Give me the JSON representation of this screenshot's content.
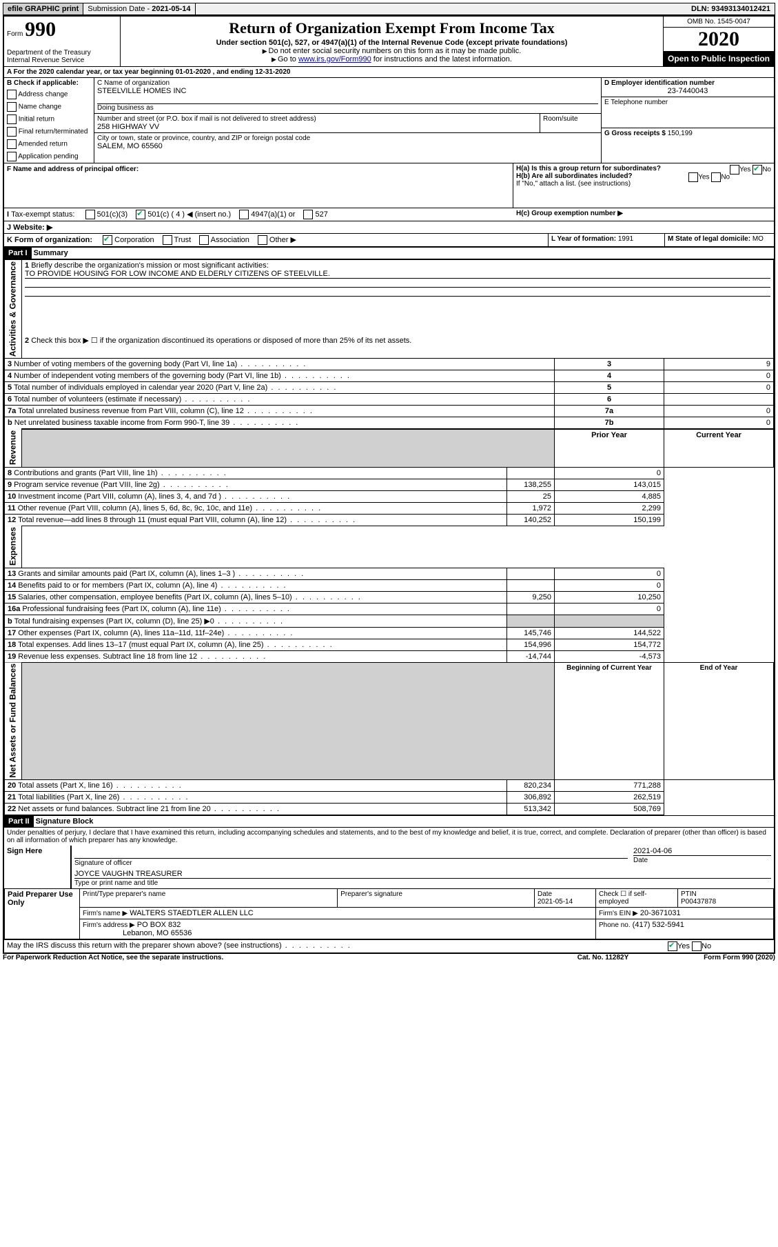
{
  "topbar": {
    "efile": "efile GRAPHIC print",
    "submission_label": "Submission Date - ",
    "submission_date": "2021-05-14",
    "dln_label": "DLN: ",
    "dln": "93493134012421"
  },
  "header": {
    "form_label": "Form",
    "form_num": "990",
    "dept": "Department of the Treasury\nInternal Revenue Service",
    "title": "Return of Organization Exempt From Income Tax",
    "subtitle": "Under section 501(c), 527, or 4947(a)(1) of the Internal Revenue Code (except private foundations)",
    "note1": "Do not enter social security numbers on this form as it may be made public.",
    "note2_pre": "Go to ",
    "note2_link": "www.irs.gov/Form990",
    "note2_post": " for instructions and the latest information.",
    "omb": "OMB No. 1545-0047",
    "year": "2020",
    "otp": "Open to Public Inspection"
  },
  "a_line": "For the 2020 calendar year, or tax year beginning 01-01-2020   , and ending 12-31-2020",
  "b": {
    "label": "B Check if applicable:",
    "items": [
      "Address change",
      "Name change",
      "Initial return",
      "Final return/terminated",
      "Amended return",
      "Application pending"
    ]
  },
  "c": {
    "name_label": "C Name of organization",
    "name": "STEELVILLE HOMES INC",
    "dba_label": "Doing business as",
    "street_label": "Number and street (or P.O. box if mail is not delivered to street address)",
    "room_label": "Room/suite",
    "street": "258 HIGHWAY VV",
    "city_label": "City or town, state or province, country, and ZIP or foreign postal code",
    "city": "SALEM, MO  65560"
  },
  "d": {
    "label": "D Employer identification number",
    "value": "23-7440043"
  },
  "e": {
    "label": "E Telephone number",
    "value": ""
  },
  "g": {
    "label": "G Gross receipts $",
    "value": "150,199"
  },
  "f": {
    "label": "F  Name and address of principal officer:",
    "value": ""
  },
  "h": {
    "a_label": "H(a)  Is this a group return for subordinates?",
    "a_no": true,
    "b_label": "H(b)  Are all subordinates included?",
    "b_note": "If \"No,\" attach a list. (see instructions)",
    "c_label": "H(c)  Group exemption number ▶"
  },
  "i": {
    "label": "Tax-exempt status:",
    "opts": [
      "501(c)(3)",
      "501(c) ( 4 ) ◀ (insert no.)",
      "4947(a)(1) or",
      "527"
    ],
    "checked_idx": 1
  },
  "j": {
    "label": "J   Website: ▶"
  },
  "k": {
    "label": "K Form of organization:",
    "opts": [
      "Corporation",
      "Trust",
      "Association",
      "Other ▶"
    ],
    "checked_idx": 0
  },
  "l": {
    "label": "L Year of formation:",
    "value": "1991"
  },
  "m": {
    "label": "M State of legal domicile:",
    "value": "MO"
  },
  "part1": {
    "hdr_label": "Part I",
    "hdr_title": "Summary",
    "sections": [
      "Activities & Governance",
      "Revenue",
      "Expenses",
      "Net Assets or Fund Balances"
    ],
    "q1_label": "Briefly describe the organization's mission or most significant activities:",
    "q1_value": "TO PROVIDE HOUSING FOR LOW INCOME AND ELDERLY CITIZENS OF STEELVILLE.",
    "q2_label": "Check this box ▶ ☐  if the organization discontinued its operations or disposed of more than 25% of its net assets.",
    "gov_rows": [
      {
        "n": "3",
        "t": "Number of voting members of the governing body (Part VI, line 1a)",
        "box": "3",
        "v": "9"
      },
      {
        "n": "4",
        "t": "Number of independent voting members of the governing body (Part VI, line 1b)",
        "box": "4",
        "v": "0"
      },
      {
        "n": "5",
        "t": "Total number of individuals employed in calendar year 2020 (Part V, line 2a)",
        "box": "5",
        "v": "0"
      },
      {
        "n": "6",
        "t": "Total number of volunteers (estimate if necessary)",
        "box": "6",
        "v": ""
      },
      {
        "n": "7a",
        "t": "Total unrelated business revenue from Part VIII, column (C), line 12",
        "box": "7a",
        "v": "0"
      },
      {
        "n": "b",
        "t": "Net unrelated business taxable income from Form 990-T, line 39",
        "box": "7b",
        "v": "0"
      }
    ],
    "col_hdrs": {
      "prior": "Prior Year",
      "current": "Current Year"
    },
    "rev_rows": [
      {
        "n": "8",
        "t": "Contributions and grants (Part VIII, line 1h)",
        "p": "",
        "c": "0"
      },
      {
        "n": "9",
        "t": "Program service revenue (Part VIII, line 2g)",
        "p": "138,255",
        "c": "143,015"
      },
      {
        "n": "10",
        "t": "Investment income (Part VIII, column (A), lines 3, 4, and 7d )",
        "p": "25",
        "c": "4,885"
      },
      {
        "n": "11",
        "t": "Other revenue (Part VIII, column (A), lines 5, 6d, 8c, 9c, 10c, and 11e)",
        "p": "1,972",
        "c": "2,299"
      },
      {
        "n": "12",
        "t": "Total revenue—add lines 8 through 11 (must equal Part VIII, column (A), line 12)",
        "p": "140,252",
        "c": "150,199"
      }
    ],
    "exp_rows": [
      {
        "n": "13",
        "t": "Grants and similar amounts paid (Part IX, column (A), lines 1–3 )",
        "p": "",
        "c": "0"
      },
      {
        "n": "14",
        "t": "Benefits paid to or for members (Part IX, column (A), line 4)",
        "p": "",
        "c": "0"
      },
      {
        "n": "15",
        "t": "Salaries, other compensation, employee benefits (Part IX, column (A), lines 5–10)",
        "p": "9,250",
        "c": "10,250"
      },
      {
        "n": "16a",
        "t": "Professional fundraising fees (Part IX, column (A), line 11e)",
        "p": "",
        "c": "0"
      },
      {
        "n": "b",
        "t": "Total fundraising expenses (Part IX, column (D), line 25) ▶0",
        "p": "GRAY",
        "c": "GRAY"
      },
      {
        "n": "17",
        "t": "Other expenses (Part IX, column (A), lines 11a–11d, 11f–24e)",
        "p": "145,746",
        "c": "144,522"
      },
      {
        "n": "18",
        "t": "Total expenses. Add lines 13–17 (must equal Part IX, column (A), line 25)",
        "p": "154,996",
        "c": "154,772"
      },
      {
        "n": "19",
        "t": "Revenue less expenses. Subtract line 18 from line 12",
        "p": "-14,744",
        "c": "-4,573"
      }
    ],
    "na_hdrs": {
      "begin": "Beginning of Current Year",
      "end": "End of Year"
    },
    "na_rows": [
      {
        "n": "20",
        "t": "Total assets (Part X, line 16)",
        "p": "820,234",
        "c": "771,288"
      },
      {
        "n": "21",
        "t": "Total liabilities (Part X, line 26)",
        "p": "306,892",
        "c": "262,519"
      },
      {
        "n": "22",
        "t": "Net assets or fund balances. Subtract line 21 from line 20",
        "p": "513,342",
        "c": "508,769"
      }
    ]
  },
  "part2": {
    "hdr_label": "Part II",
    "hdr_title": "Signature Block",
    "penalty": "Under penalties of perjury, I declare that I have examined this return, including accompanying schedules and statements, and to the best of my knowledge and belief, it is true, correct, and complete. Declaration of preparer (other than officer) is based on all information of which preparer has any knowledge."
  },
  "sign": {
    "label": "Sign Here",
    "sig_label": "Signature of officer",
    "date_label": "Date",
    "date": "2021-04-06",
    "name": "JOYCE VAUGHN  TREASURER",
    "name_label": "Type or print name and title"
  },
  "paid": {
    "label": "Paid Preparer Use Only",
    "cols": [
      "Print/Type preparer's name",
      "Preparer's signature",
      "Date",
      "Check ☐  if self-employed",
      "PTIN"
    ],
    "date": "2021-05-14",
    "ptin": "P00437878",
    "firm_label": "Firm's name   ▶",
    "firm": "WALTERS STAEDTLER ALLEN LLC",
    "ein_label": "Firm's EIN ▶",
    "ein": "20-3671031",
    "addr_label": "Firm's address ▶",
    "addr1": "PO BOX 832",
    "addr2": "Lebanon, MO  65536",
    "phone_label": "Phone no.",
    "phone": "(417) 532-5941",
    "discuss": "May the IRS discuss this return with the preparer shown above? (see instructions)",
    "discuss_yes": true
  },
  "footer": {
    "pra": "For Paperwork Reduction Act Notice, see the separate instructions.",
    "cat": "Cat. No. 11282Y",
    "form": "Form 990 (2020)"
  }
}
